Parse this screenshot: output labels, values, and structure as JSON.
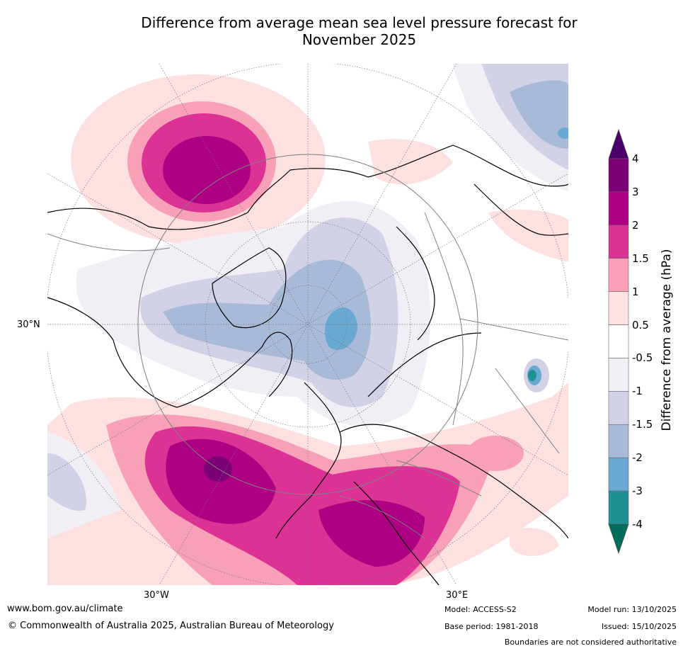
{
  "title_line1": "Difference from average mean sea level pressure forecast for",
  "title_line2": "November 2025",
  "map": {
    "projection": "north-polar-stereographic",
    "lon_labels": {
      "lon_30w": "30°W",
      "lon_30e": "30°E"
    },
    "lat_labels": {
      "lat_30n": "30°N"
    }
  },
  "colorbar": {
    "title": "Difference from average (hPa)",
    "ticks": [
      "4",
      "3",
      "2",
      "1.5",
      "1",
      "0.5",
      "-0.5",
      "-1",
      "-1.5",
      "-2",
      "-3",
      "-4"
    ],
    "bands": [
      {
        "from": 3,
        "to": 4,
        "color": "#7b0076"
      },
      {
        "from": 2,
        "to": 3,
        "color": "#ad0082"
      },
      {
        "from": 1.5,
        "to": 2,
        "color": "#dc3296"
      },
      {
        "from": 1,
        "to": 1.5,
        "color": "#f8a0b8"
      },
      {
        "from": 0.5,
        "to": 1,
        "color": "#fde0e0"
      },
      {
        "from": -0.5,
        "to": 0.5,
        "color": "#ffffff"
      },
      {
        "from": -1,
        "to": -0.5,
        "color": "#f2eef5"
      },
      {
        "from": -1.5,
        "to": -1,
        "color": "#d2d2e6"
      },
      {
        "from": -2,
        "to": -1.5,
        "color": "#a9bad8"
      },
      {
        "from": -3,
        "to": -2,
        "color": "#6aaad2"
      },
      {
        "from": -4,
        "to": -3,
        "color": "#1e9196"
      }
    ],
    "over_color": "#4b0069",
    "under_color": "#006e5a"
  },
  "footer": {
    "website": "www.bom.gov.au/climate",
    "copyright": "© Commonwealth of Australia 2025, Australian Bureau of Meteorology",
    "model": "Model: ACCESS-S2",
    "base_period": "Base period: 1981-2018",
    "model_run": "Model run: 13/10/2025",
    "issued": "Issued: 15/10/2025",
    "disclaimer": "Boundaries are not considered authoritative"
  }
}
